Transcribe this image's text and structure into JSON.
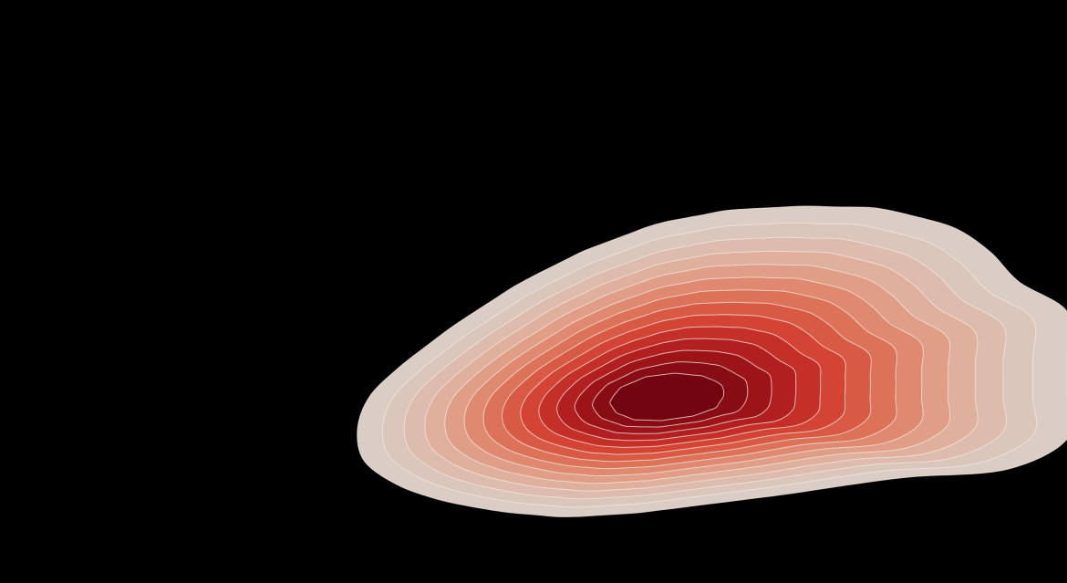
{
  "chart_data": {
    "type": "density",
    "title": "",
    "xlabel": "",
    "ylabel": "",
    "grid": false,
    "legend": "none",
    "levels": 14,
    "colormap": "Reds",
    "background_color": "#000000",
    "level_colors": [
      "#dacdc6",
      "#dbc6bc",
      "#ddbcad",
      "#dfb09c",
      "#e09e87",
      "#df8a70",
      "#dc7258",
      "#d95a44",
      "#d34434",
      "#c43028",
      "#b21f21",
      "#9c1418",
      "#880c13",
      "#720510"
    ]
  }
}
